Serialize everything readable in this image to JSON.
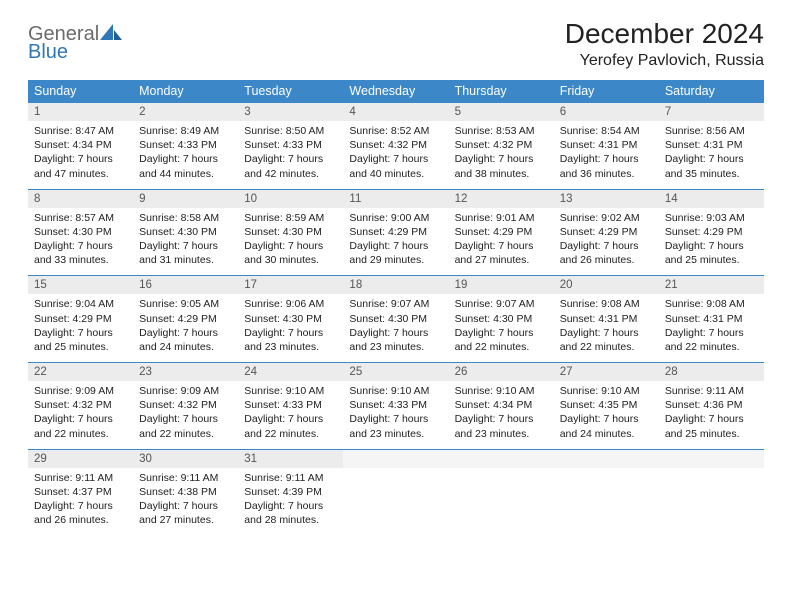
{
  "logo": {
    "line1": "General",
    "line2": "Blue"
  },
  "title": "December 2024",
  "location": "Yerofey Pavlovich, Russia",
  "colors": {
    "header_bg": "#3b87c8",
    "header_text": "#ffffff",
    "rule": "#3b87c8",
    "daynum_bg": "#ececec",
    "logo_gray": "#6b6b6b",
    "logo_blue": "#2f77b7"
  },
  "weekdays": [
    "Sunday",
    "Monday",
    "Tuesday",
    "Wednesday",
    "Thursday",
    "Friday",
    "Saturday"
  ],
  "weeks": [
    [
      {
        "n": "1",
        "sr": "Sunrise: 8:47 AM",
        "ss": "Sunset: 4:34 PM",
        "d1": "Daylight: 7 hours",
        "d2": "and 47 minutes."
      },
      {
        "n": "2",
        "sr": "Sunrise: 8:49 AM",
        "ss": "Sunset: 4:33 PM",
        "d1": "Daylight: 7 hours",
        "d2": "and 44 minutes."
      },
      {
        "n": "3",
        "sr": "Sunrise: 8:50 AM",
        "ss": "Sunset: 4:33 PM",
        "d1": "Daylight: 7 hours",
        "d2": "and 42 minutes."
      },
      {
        "n": "4",
        "sr": "Sunrise: 8:52 AM",
        "ss": "Sunset: 4:32 PM",
        "d1": "Daylight: 7 hours",
        "d2": "and 40 minutes."
      },
      {
        "n": "5",
        "sr": "Sunrise: 8:53 AM",
        "ss": "Sunset: 4:32 PM",
        "d1": "Daylight: 7 hours",
        "d2": "and 38 minutes."
      },
      {
        "n": "6",
        "sr": "Sunrise: 8:54 AM",
        "ss": "Sunset: 4:31 PM",
        "d1": "Daylight: 7 hours",
        "d2": "and 36 minutes."
      },
      {
        "n": "7",
        "sr": "Sunrise: 8:56 AM",
        "ss": "Sunset: 4:31 PM",
        "d1": "Daylight: 7 hours",
        "d2": "and 35 minutes."
      }
    ],
    [
      {
        "n": "8",
        "sr": "Sunrise: 8:57 AM",
        "ss": "Sunset: 4:30 PM",
        "d1": "Daylight: 7 hours",
        "d2": "and 33 minutes."
      },
      {
        "n": "9",
        "sr": "Sunrise: 8:58 AM",
        "ss": "Sunset: 4:30 PM",
        "d1": "Daylight: 7 hours",
        "d2": "and 31 minutes."
      },
      {
        "n": "10",
        "sr": "Sunrise: 8:59 AM",
        "ss": "Sunset: 4:30 PM",
        "d1": "Daylight: 7 hours",
        "d2": "and 30 minutes."
      },
      {
        "n": "11",
        "sr": "Sunrise: 9:00 AM",
        "ss": "Sunset: 4:29 PM",
        "d1": "Daylight: 7 hours",
        "d2": "and 29 minutes."
      },
      {
        "n": "12",
        "sr": "Sunrise: 9:01 AM",
        "ss": "Sunset: 4:29 PM",
        "d1": "Daylight: 7 hours",
        "d2": "and 27 minutes."
      },
      {
        "n": "13",
        "sr": "Sunrise: 9:02 AM",
        "ss": "Sunset: 4:29 PM",
        "d1": "Daylight: 7 hours",
        "d2": "and 26 minutes."
      },
      {
        "n": "14",
        "sr": "Sunrise: 9:03 AM",
        "ss": "Sunset: 4:29 PM",
        "d1": "Daylight: 7 hours",
        "d2": "and 25 minutes."
      }
    ],
    [
      {
        "n": "15",
        "sr": "Sunrise: 9:04 AM",
        "ss": "Sunset: 4:29 PM",
        "d1": "Daylight: 7 hours",
        "d2": "and 25 minutes."
      },
      {
        "n": "16",
        "sr": "Sunrise: 9:05 AM",
        "ss": "Sunset: 4:29 PM",
        "d1": "Daylight: 7 hours",
        "d2": "and 24 minutes."
      },
      {
        "n": "17",
        "sr": "Sunrise: 9:06 AM",
        "ss": "Sunset: 4:30 PM",
        "d1": "Daylight: 7 hours",
        "d2": "and 23 minutes."
      },
      {
        "n": "18",
        "sr": "Sunrise: 9:07 AM",
        "ss": "Sunset: 4:30 PM",
        "d1": "Daylight: 7 hours",
        "d2": "and 23 minutes."
      },
      {
        "n": "19",
        "sr": "Sunrise: 9:07 AM",
        "ss": "Sunset: 4:30 PM",
        "d1": "Daylight: 7 hours",
        "d2": "and 22 minutes."
      },
      {
        "n": "20",
        "sr": "Sunrise: 9:08 AM",
        "ss": "Sunset: 4:31 PM",
        "d1": "Daylight: 7 hours",
        "d2": "and 22 minutes."
      },
      {
        "n": "21",
        "sr": "Sunrise: 9:08 AM",
        "ss": "Sunset: 4:31 PM",
        "d1": "Daylight: 7 hours",
        "d2": "and 22 minutes."
      }
    ],
    [
      {
        "n": "22",
        "sr": "Sunrise: 9:09 AM",
        "ss": "Sunset: 4:32 PM",
        "d1": "Daylight: 7 hours",
        "d2": "and 22 minutes."
      },
      {
        "n": "23",
        "sr": "Sunrise: 9:09 AM",
        "ss": "Sunset: 4:32 PM",
        "d1": "Daylight: 7 hours",
        "d2": "and 22 minutes."
      },
      {
        "n": "24",
        "sr": "Sunrise: 9:10 AM",
        "ss": "Sunset: 4:33 PM",
        "d1": "Daylight: 7 hours",
        "d2": "and 22 minutes."
      },
      {
        "n": "25",
        "sr": "Sunrise: 9:10 AM",
        "ss": "Sunset: 4:33 PM",
        "d1": "Daylight: 7 hours",
        "d2": "and 23 minutes."
      },
      {
        "n": "26",
        "sr": "Sunrise: 9:10 AM",
        "ss": "Sunset: 4:34 PM",
        "d1": "Daylight: 7 hours",
        "d2": "and 23 minutes."
      },
      {
        "n": "27",
        "sr": "Sunrise: 9:10 AM",
        "ss": "Sunset: 4:35 PM",
        "d1": "Daylight: 7 hours",
        "d2": "and 24 minutes."
      },
      {
        "n": "28",
        "sr": "Sunrise: 9:11 AM",
        "ss": "Sunset: 4:36 PM",
        "d1": "Daylight: 7 hours",
        "d2": "and 25 minutes."
      }
    ],
    [
      {
        "n": "29",
        "sr": "Sunrise: 9:11 AM",
        "ss": "Sunset: 4:37 PM",
        "d1": "Daylight: 7 hours",
        "d2": "and 26 minutes."
      },
      {
        "n": "30",
        "sr": "Sunrise: 9:11 AM",
        "ss": "Sunset: 4:38 PM",
        "d1": "Daylight: 7 hours",
        "d2": "and 27 minutes."
      },
      {
        "n": "31",
        "sr": "Sunrise: 9:11 AM",
        "ss": "Sunset: 4:39 PM",
        "d1": "Daylight: 7 hours",
        "d2": "and 28 minutes."
      },
      null,
      null,
      null,
      null
    ]
  ]
}
